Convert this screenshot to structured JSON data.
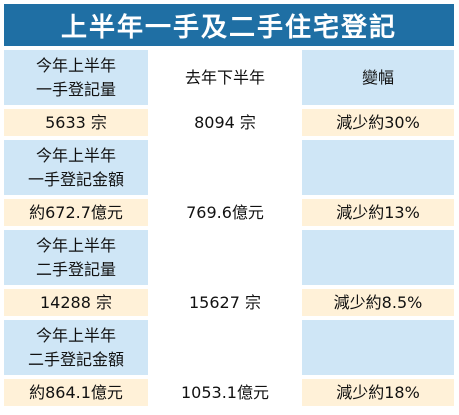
{
  "title": "上半年一手及二手住宅登記",
  "header": {
    "col2": "去年下半年",
    "col3": "變幅"
  },
  "sections": [
    {
      "label_line1": "今年上半年",
      "label_line2": "一手登記量",
      "value_this": "5633 宗",
      "value_last": "8094 宗",
      "change": "減少約30%"
    },
    {
      "label_line1": "今年上半年",
      "label_line2": "一手登記金額",
      "value_this": "約672.7億元",
      "value_last": "769.6億元",
      "change": "減少約13%"
    },
    {
      "label_line1": "今年上半年",
      "label_line2": "二手登記量",
      "value_this": "14288 宗",
      "value_last": "15627 宗",
      "change": "減少約8.5%"
    },
    {
      "label_line1": "今年上半年",
      "label_line2": "二手登記金額",
      "value_this": "約864.1億元",
      "value_last": "1053.1億元",
      "change": "減少約18%"
    }
  ],
  "colors": {
    "title_bg": "#1f6fa4",
    "header_bg": "#cfe6f6",
    "value_bg": "#fff1d8"
  }
}
